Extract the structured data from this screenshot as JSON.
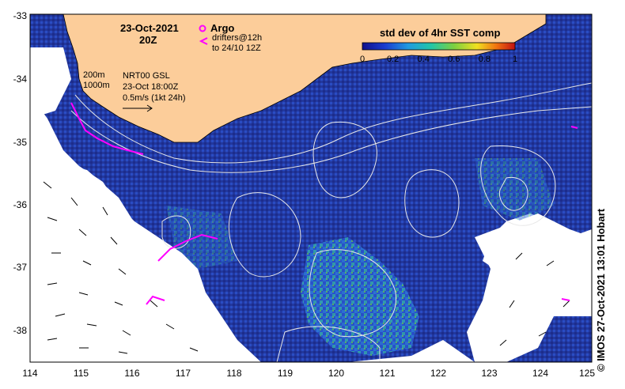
{
  "map": {
    "date_label": "23-Oct-2021",
    "time_label": "20Z",
    "argo_label": "Argo",
    "drifter_label_1": "drifters@12h",
    "drifter_label_2": "to 24/10 12Z",
    "depth_label_1": "200m",
    "depth_label_2": "1000m",
    "vector_label_1": "NRT00 GSL",
    "vector_label_2": "23-Oct 18:00Z",
    "vector_label_3": "0.5m/s (1kt 24h)",
    "colorbar_title": "std dev of 4hr SST comp",
    "colorbar_ticks": [
      "0",
      "0.2",
      "0.4",
      "0.6",
      "0.8",
      "1"
    ],
    "credit": "© IMOS 27-Oct-2021 13:01 Hobart",
    "lon_ticks": [
      "114",
      "115",
      "116",
      "117",
      "118",
      "119",
      "120",
      "121",
      "122",
      "123",
      "124",
      "125"
    ],
    "lat_ticks": [
      "-33",
      "-34",
      "-35",
      "-36",
      "-37",
      "-38"
    ],
    "colors": {
      "land": "#fccd9a",
      "ocean_dark": "#1e2e9a",
      "ocean_mid": "#2648c8",
      "no_data": "#ffffff",
      "drifter": "#ff00ff",
      "contour": "#e8e8e8"
    }
  }
}
